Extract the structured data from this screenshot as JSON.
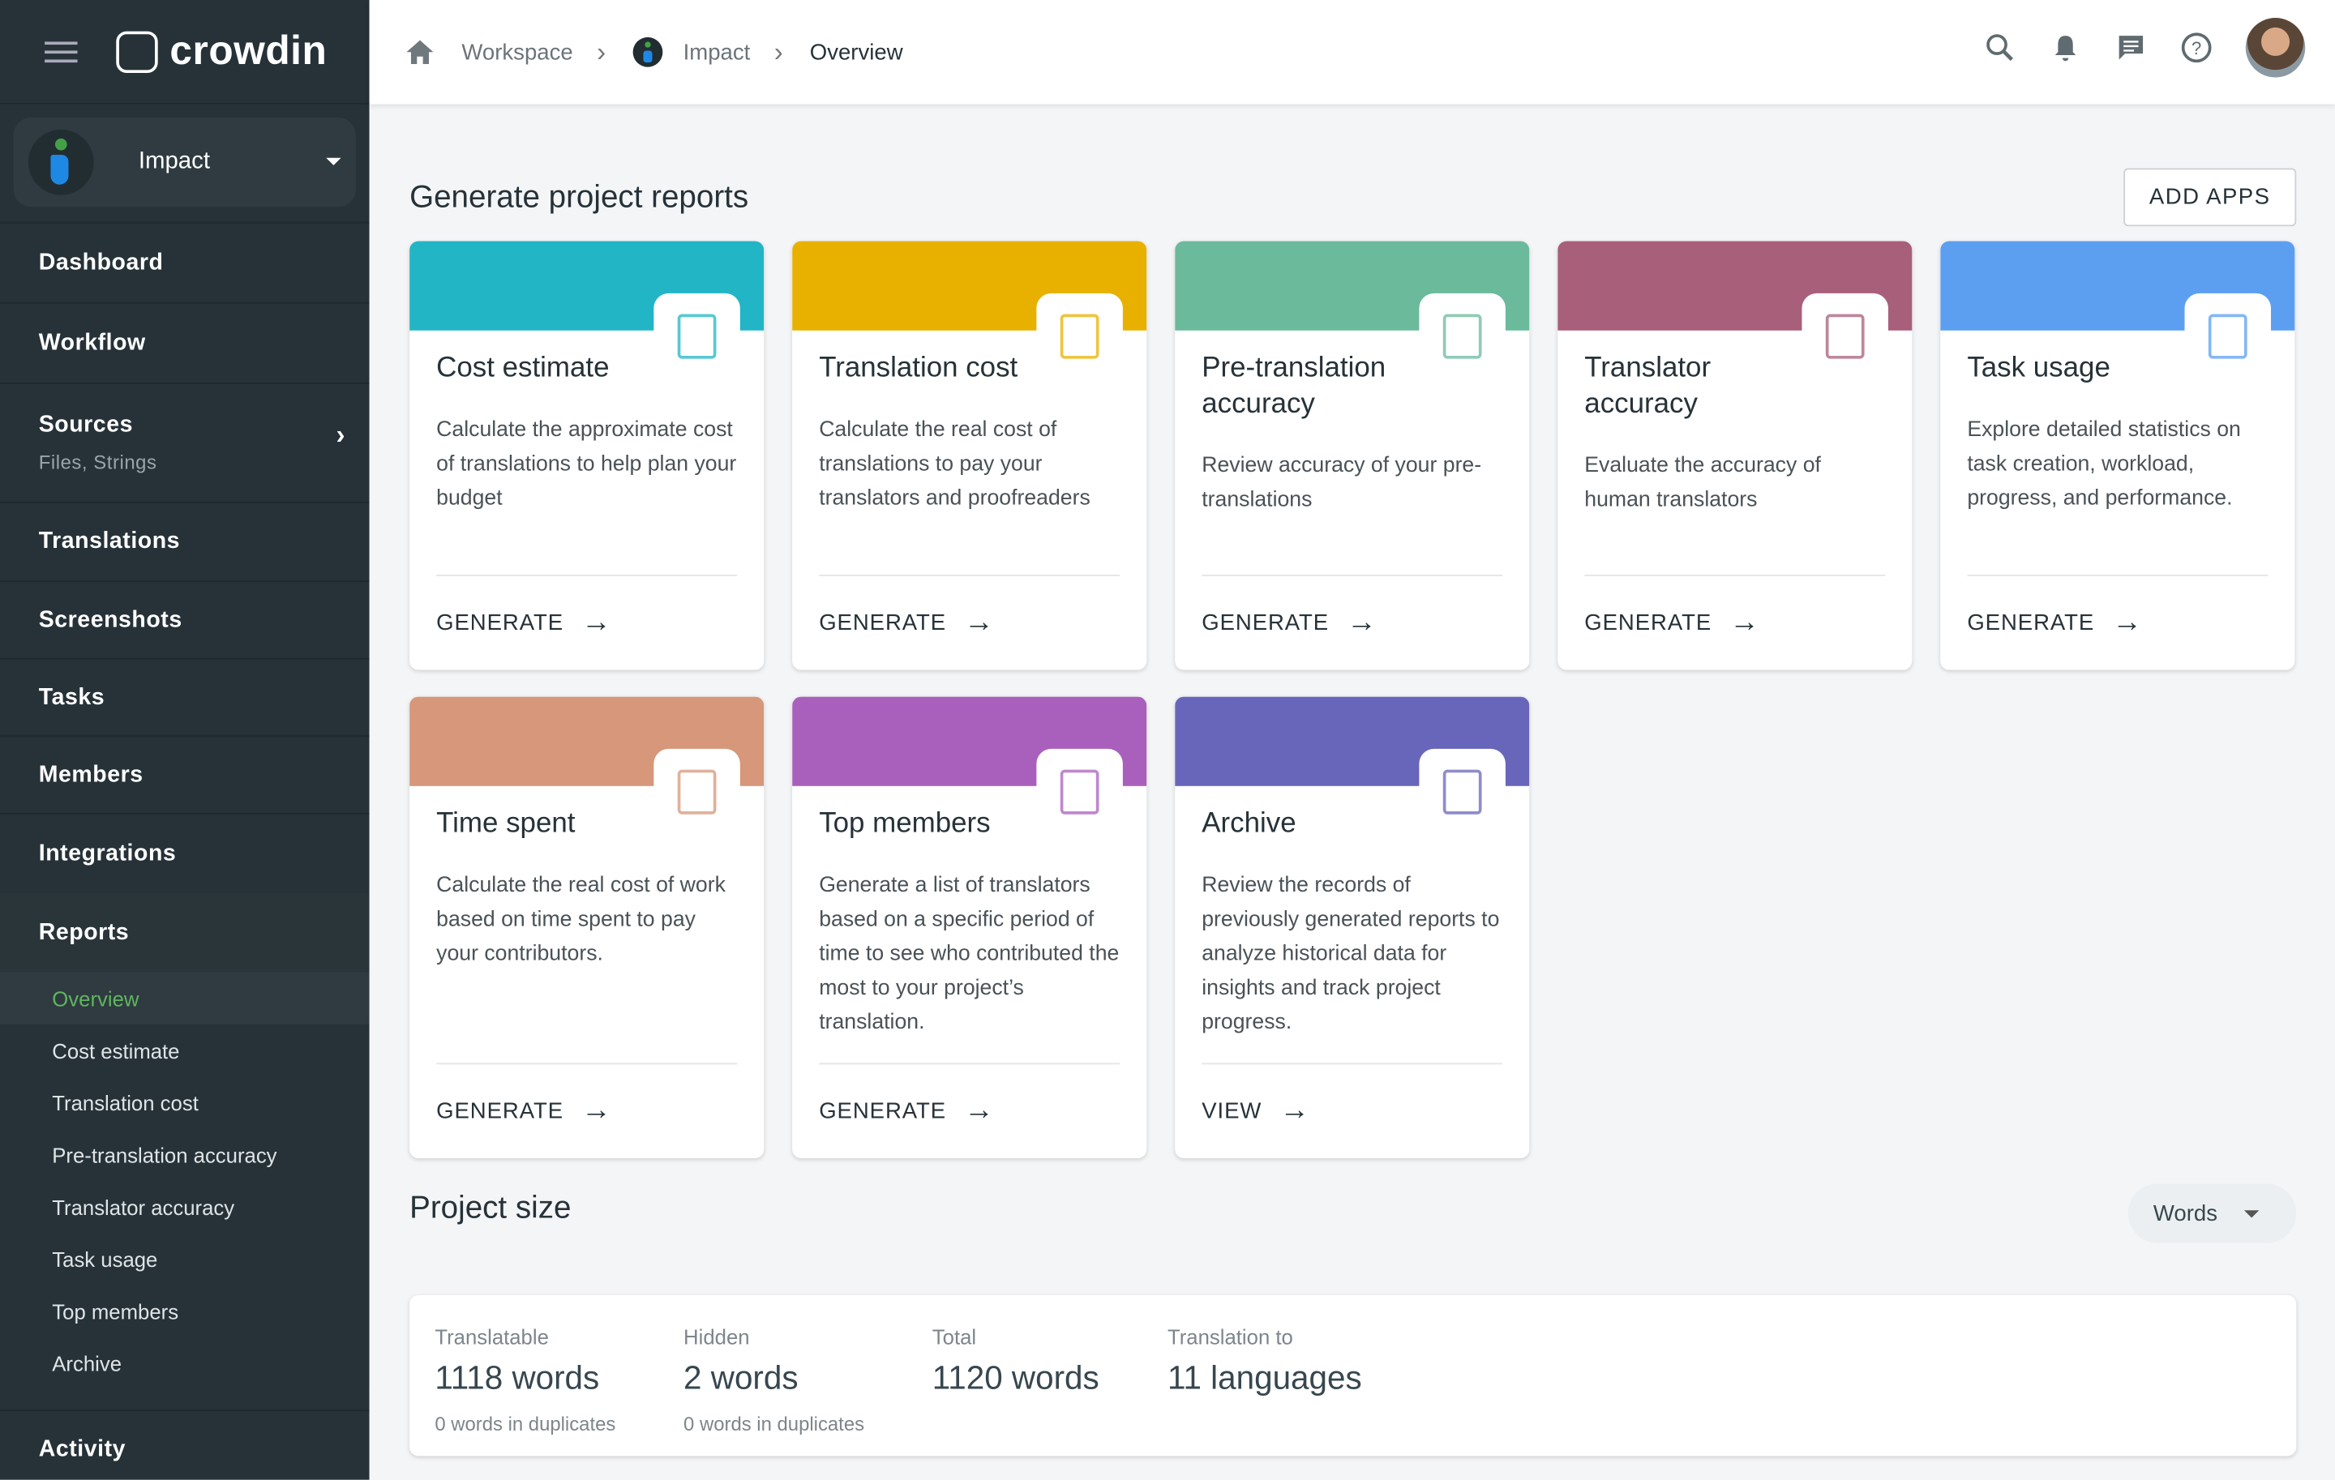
{
  "app": {
    "logo": "crowdin",
    "project": "Impact"
  },
  "sidebar": {
    "items": [
      {
        "label": "Dashboard"
      },
      {
        "label": "Workflow"
      },
      {
        "label": "Sources",
        "sub": "Files, Strings"
      },
      {
        "label": "Translations"
      },
      {
        "label": "Screenshots"
      },
      {
        "label": "Tasks"
      },
      {
        "label": "Members"
      },
      {
        "label": "Integrations"
      },
      {
        "label": "Reports"
      }
    ],
    "reports_sub": [
      "Overview",
      "Cost estimate",
      "Translation cost",
      "Pre-translation accuracy",
      "Translator accuracy",
      "Task usage",
      "Top members",
      "Archive"
    ],
    "activity": "Activity"
  },
  "breadcrumb": [
    "Workspace",
    "Impact",
    "Overview"
  ],
  "header_icons": [
    "search-icon",
    "bell-icon",
    "chat-icon",
    "help-icon",
    "avatar"
  ],
  "reports": {
    "title": "Generate project reports",
    "add_apps": "ADD APPS",
    "cards": [
      {
        "title": "Cost estimate",
        "desc": "Calculate the approximate cost of translations to help plan your budget",
        "action": "GENERATE",
        "color": "#22b5c6"
      },
      {
        "title": "Translation cost",
        "desc": "Calculate the real cost of translations to pay your translators and proofreaders",
        "action": "GENERATE",
        "color": "#e8b100"
      },
      {
        "title": "Pre-translation accuracy",
        "desc": "Review accuracy of your pre-translations",
        "action": "GENERATE",
        "color": "#6bba9c"
      },
      {
        "title": "Translator accuracy",
        "desc": "Evaluate the accuracy of human translators",
        "action": "GENERATE",
        "color": "#a85f7a"
      },
      {
        "title": "Task usage",
        "desc": "Explore detailed statistics on task creation, workload, progress, and performance.",
        "action": "GENERATE",
        "color": "#5c9ff0"
      },
      {
        "title": "Time spent",
        "desc": "Calculate the real cost of work based on time spent to pay your contributors.",
        "action": "GENERATE",
        "color": "#d6977a"
      },
      {
        "title": "Top members",
        "desc": "Generate a list of translators based on a specific period of time to see who contributed the most to your project’s translation.",
        "action": "GENERATE",
        "color": "#a960bc"
      },
      {
        "title": "Archive",
        "desc": "Review the records of previously generated reports to analyze historical data for insights and track project progress.",
        "action": "VIEW",
        "color": "#6866ba"
      }
    ]
  },
  "project_size": {
    "title": "Project size",
    "unit_select": "Words",
    "stats": [
      {
        "label": "Translatable",
        "value": "1118 words",
        "sub": "0 words in duplicates"
      },
      {
        "label": "Hidden",
        "value": "2 words",
        "sub": "0 words in duplicates"
      },
      {
        "label": "Total",
        "value": "1120 words"
      },
      {
        "label": "Translation to",
        "value": "11 languages"
      }
    ]
  }
}
